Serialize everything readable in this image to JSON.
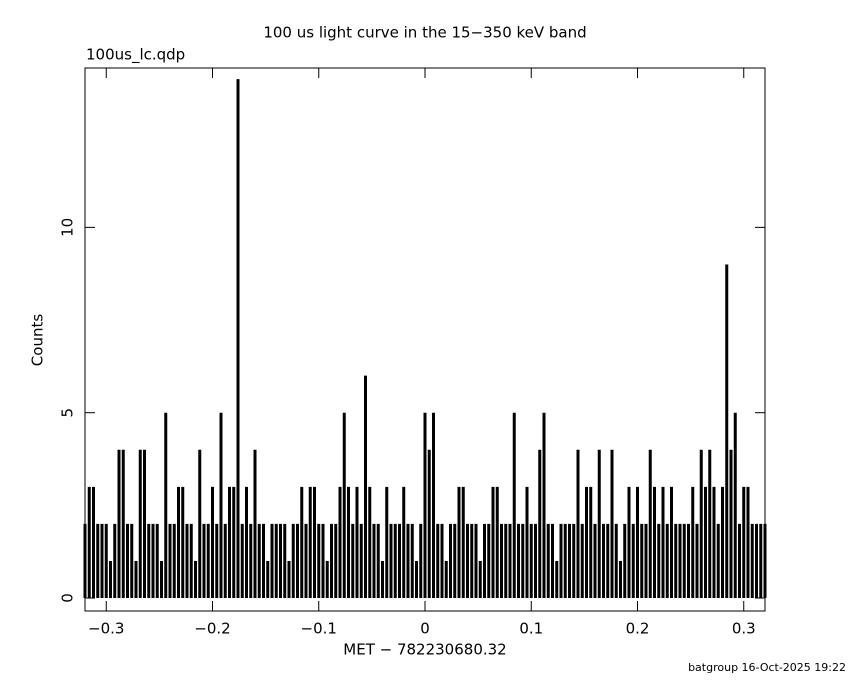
{
  "chart_data": {
    "type": "bar",
    "title": "100 us light curve in the 15−350 keV band",
    "subtitle": "100us_lc.qdp",
    "x_label": "MET − 782230680.32",
    "y_label": "Counts",
    "footer": "batgroup 16-Oct-2025 19:22",
    "color": "#000000",
    "xlim": [
      -0.32,
      0.32
    ],
    "ylim": [
      -0.35,
      14.3
    ],
    "xticks": [
      {
        "value": -0.3,
        "label": "−0.3"
      },
      {
        "value": -0.2,
        "label": "−0.2"
      },
      {
        "value": -0.1,
        "label": "−0.1"
      },
      0,
      0.1,
      0.2,
      0.3
    ],
    "yticks": [
      0,
      5,
      10
    ],
    "x": [
      -0.32,
      -0.316,
      -0.312,
      -0.308,
      -0.304,
      -0.3,
      -0.296,
      -0.292,
      -0.288,
      -0.284,
      -0.28,
      -0.276,
      -0.272,
      -0.268,
      -0.264,
      -0.26,
      -0.256,
      -0.252,
      -0.248,
      -0.244,
      -0.24,
      -0.236,
      -0.232,
      -0.228,
      -0.224,
      -0.22,
      -0.216,
      -0.212,
      -0.208,
      -0.204,
      -0.2,
      -0.196,
      -0.192,
      -0.188,
      -0.184,
      -0.18,
      -0.176,
      -0.172,
      -0.168,
      -0.164,
      -0.16,
      -0.156,
      -0.152,
      -0.148,
      -0.144,
      -0.14,
      -0.136,
      -0.132,
      -0.128,
      -0.124,
      -0.12,
      -0.116,
      -0.112,
      -0.108,
      -0.104,
      -0.1,
      -0.096,
      -0.092,
      -0.088,
      -0.084,
      -0.08,
      -0.076,
      -0.072,
      -0.068,
      -0.064,
      -0.06,
      -0.056,
      -0.052,
      -0.048,
      -0.044,
      -0.04,
      -0.036,
      -0.032,
      -0.028,
      -0.024,
      -0.02,
      -0.016,
      -0.012,
      -0.008,
      -0.004,
      0,
      0.004,
      0.008,
      0.012,
      0.016,
      0.02,
      0.024,
      0.028,
      0.032,
      0.036,
      0.04,
      0.044,
      0.048,
      0.052,
      0.056,
      0.06,
      0.064,
      0.068,
      0.072,
      0.076,
      0.08,
      0.084,
      0.088,
      0.092,
      0.096,
      0.1,
      0.104,
      0.108,
      0.112,
      0.116,
      0.12,
      0.124,
      0.128,
      0.132,
      0.136,
      0.14,
      0.144,
      0.148,
      0.152,
      0.156,
      0.16,
      0.164,
      0.168,
      0.172,
      0.176,
      0.18,
      0.184,
      0.188,
      0.192,
      0.196,
      0.2,
      0.204,
      0.208,
      0.212,
      0.216,
      0.22,
      0.224,
      0.228,
      0.232,
      0.236,
      0.24,
      0.244,
      0.248,
      0.252,
      0.256,
      0.26,
      0.264,
      0.268,
      0.272,
      0.276,
      0.28,
      0.284,
      0.288,
      0.292,
      0.296,
      0.3,
      0.304,
      0.308,
      0.312,
      0.316,
      0.32
    ],
    "values": [
      2,
      3,
      3,
      2,
      2,
      2,
      1,
      2,
      4,
      4,
      2,
      2,
      1,
      4,
      4,
      2,
      2,
      2,
      1,
      5,
      2,
      2,
      3,
      3,
      2,
      2,
      1,
      4,
      2,
      2,
      3,
      2,
      5,
      2,
      3,
      3,
      14,
      2,
      3,
      2,
      4,
      2,
      2,
      1,
      2,
      2,
      2,
      2,
      1,
      2,
      2,
      3,
      2,
      3,
      3,
      2,
      2,
      1,
      2,
      2,
      3,
      5,
      3,
      2,
      3,
      2,
      6,
      3,
      2,
      2,
      1,
      3,
      2,
      2,
      2,
      3,
      2,
      2,
      1,
      2,
      5,
      4,
      5,
      2,
      2,
      1,
      2,
      2,
      3,
      3,
      2,
      2,
      2,
      1,
      2,
      2,
      3,
      3,
      2,
      2,
      2,
      5,
      2,
      2,
      3,
      2,
      2,
      4,
      5,
      2,
      2,
      1,
      2,
      2,
      2,
      2,
      4,
      2,
      3,
      3,
      2,
      4,
      2,
      2,
      4,
      2,
      1,
      2,
      3,
      2,
      3,
      2,
      2,
      4,
      3,
      2,
      3,
      2,
      3,
      2,
      2,
      2,
      2,
      3,
      2,
      4,
      3,
      4,
      3,
      2,
      3,
      9,
      4,
      5,
      2,
      3,
      3,
      2,
      2,
      2,
      2
    ]
  }
}
